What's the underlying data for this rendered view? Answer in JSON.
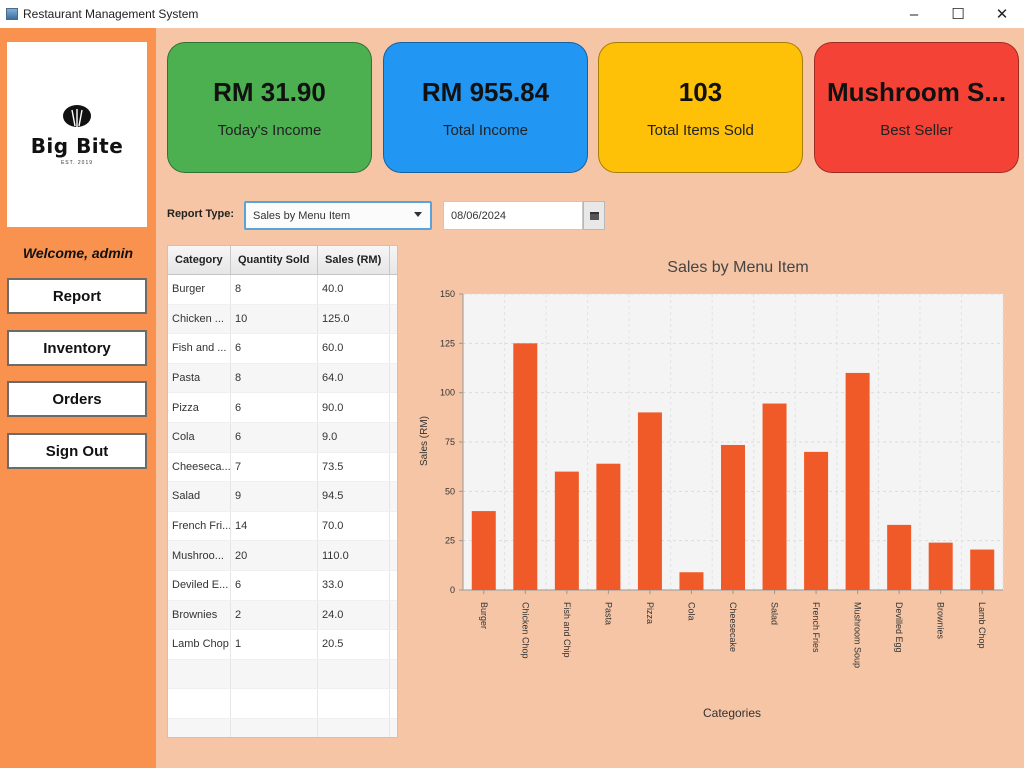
{
  "window": {
    "title": "Restaurant Management System",
    "minimize": "–",
    "maximize": "☐",
    "close": "✕"
  },
  "sidebar": {
    "logo_text": "Big Bite",
    "logo_sub": "EST. 2019",
    "welcome": "Welcome, admin",
    "buttons": [
      "Report",
      "Inventory",
      "Orders",
      "Sign Out"
    ]
  },
  "cards": [
    {
      "value": "RM 31.90",
      "label": "Today's Income",
      "color": "#4caf50"
    },
    {
      "value": "RM 955.84",
      "label": "Total Income",
      "color": "#2196f3"
    },
    {
      "value": "103",
      "label": "Total Items Sold",
      "color": "#ffc107"
    },
    {
      "value": "Mushroom S...",
      "label": "Best Seller",
      "color": "#f44336"
    }
  ],
  "report": {
    "type_label": "Report Type:",
    "type_value": "Sales by Menu Item",
    "date": "08/06/2024"
  },
  "table": {
    "headers": [
      "Category",
      "Quantity Sold",
      "Sales (RM)"
    ],
    "rows": [
      [
        "Burger",
        "8",
        "40.0"
      ],
      [
        "Chicken ...",
        "10",
        "125.0"
      ],
      [
        "Fish and ...",
        "6",
        "60.0"
      ],
      [
        "Pasta",
        "8",
        "64.0"
      ],
      [
        "Pizza",
        "6",
        "90.0"
      ],
      [
        "Cola",
        "6",
        "9.0"
      ],
      [
        "Cheeseca...",
        "7",
        "73.5"
      ],
      [
        "Salad",
        "9",
        "94.5"
      ],
      [
        "French Fri...",
        "14",
        "70.0"
      ],
      [
        "Mushroo...",
        "20",
        "110.0"
      ],
      [
        "Deviled E...",
        "6",
        "33.0"
      ],
      [
        "Brownies",
        "2",
        "24.0"
      ],
      [
        "Lamb Chop",
        "1",
        "20.5"
      ]
    ]
  },
  "chart_data": {
    "type": "bar",
    "title": "Sales by Menu Item",
    "xlabel": "Categories",
    "ylabel": "Sales (RM)",
    "categories": [
      "Burger",
      "Chicken Chop",
      "Fish and Chip",
      "Pasta",
      "Pizza",
      "Cola",
      "Cheesecake",
      "Salad",
      "French Fries",
      "Mushroom Soup",
      "Devilled Egg",
      "Brownies",
      "Lamb Chop"
    ],
    "values": [
      40.0,
      125.0,
      60.0,
      64.0,
      90.0,
      9.0,
      73.5,
      94.5,
      70.0,
      110.0,
      33.0,
      24.0,
      20.5
    ],
    "ylim": [
      0,
      150
    ],
    "yticks": [
      "0",
      "25",
      "50",
      "75",
      "100",
      "125",
      "150"
    ],
    "bar_color": "#f05a28",
    "grid": true,
    "legend": "none"
  }
}
